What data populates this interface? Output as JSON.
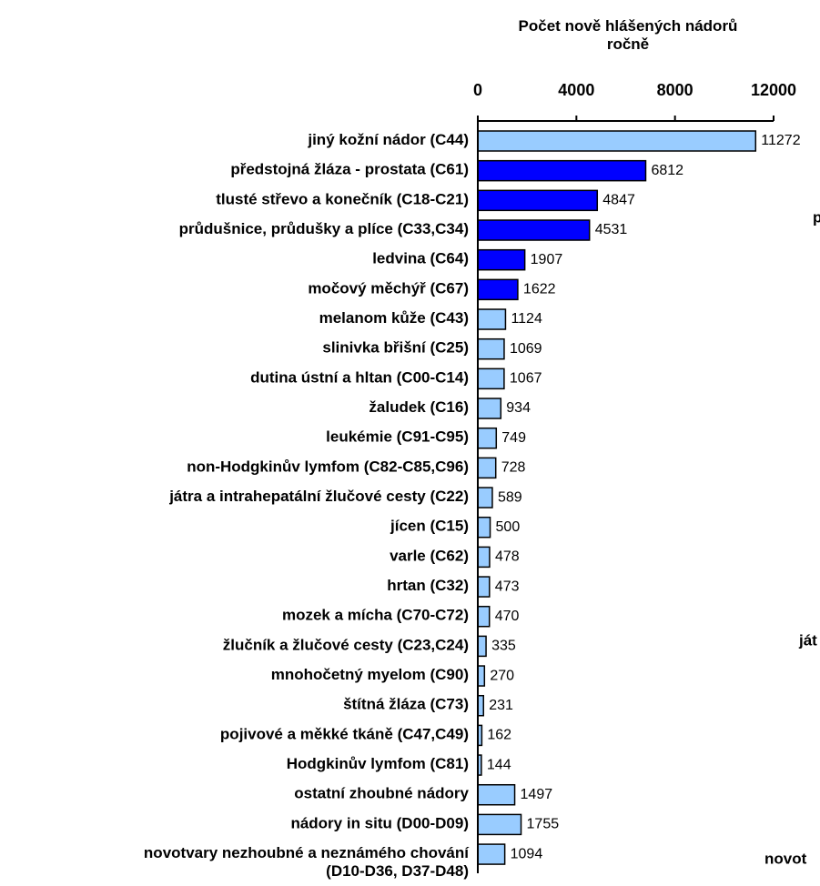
{
  "chart_data": {
    "type": "barh",
    "title": "Počet nově hlášených nádorů ročně",
    "categories": [
      "jiný kožní nádor (C44)",
      "předstojná žláza - prostata (C61)",
      "tlusté střevo a konečník (C18-C21)",
      "průdušnice, průdušky a plíce (C33,C34)",
      "ledvina (C64)",
      "močový měchýř (C67)",
      "melanom kůže (C43)",
      "slinivka břišní (C25)",
      "dutina ústní a hltan (C00-C14)",
      "žaludek (C16)",
      "leukémie (C91-C95)",
      "non-Hodgkinův lymfom (C82-C85,C96)",
      "játra a intrahepatální žlučové cesty (C22)",
      "jícen (C15)",
      "varle (C62)",
      "hrtan (C32)",
      "mozek a mícha (C70-C72)",
      "žlučník a žlučové cesty (C23,C24)",
      "mnohočetný myelom (C90)",
      "štítná žláza (C73)",
      "pojivové a měkké tkáně (C47,C49)",
      "Hodgkinův lymfom (C81)",
      "ostatní zhoubné nádory",
      "nádory in situ (D00-D09)",
      "novotvary nezhoubné a neznámého chování\n(D10-D36, D37-D48)"
    ],
    "values": [
      11272,
      6812,
      4847,
      4531,
      1907,
      1622,
      1124,
      1069,
      1067,
      934,
      749,
      728,
      589,
      500,
      478,
      473,
      470,
      335,
      270,
      231,
      162,
      144,
      1497,
      1755,
      1094
    ],
    "colors": [
      "#99ccff",
      "#0000ff",
      "#0000ff",
      "#0000ff",
      "#0000ff",
      "#0000ff",
      "#99ccff",
      "#99ccff",
      "#99ccff",
      "#99ccff",
      "#99ccff",
      "#99ccff",
      "#99ccff",
      "#99ccff",
      "#99ccff",
      "#99ccff",
      "#99ccff",
      "#99ccff",
      "#99ccff",
      "#99ccff",
      "#99ccff",
      "#99ccff",
      "#99ccff",
      "#99ccff",
      "#99ccff"
    ],
    "xlim": [
      0,
      12000
    ],
    "xticks": [
      0,
      4000,
      8000,
      12000
    ],
    "annotations": [
      "p",
      "ját",
      "novot"
    ]
  }
}
